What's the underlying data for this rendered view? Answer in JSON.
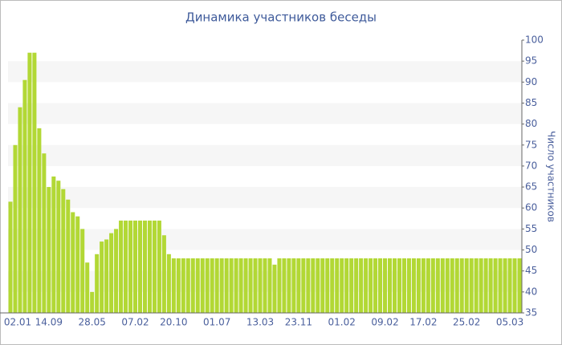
{
  "chart_data": {
    "type": "bar",
    "title": "Динамика участников беседы",
    "y_axis_label": "Число участников",
    "categories": [
      "02.01",
      null,
      null,
      null,
      null,
      null,
      null,
      null,
      "14.09",
      null,
      null,
      null,
      null,
      null,
      null,
      null,
      null,
      "28.05",
      null,
      null,
      null,
      null,
      null,
      null,
      null,
      null,
      "07.02",
      null,
      null,
      null,
      null,
      null,
      null,
      null,
      "20.10",
      null,
      null,
      null,
      null,
      null,
      null,
      null,
      null,
      "01.07",
      null,
      null,
      null,
      null,
      null,
      null,
      null,
      null,
      "13.03",
      null,
      null,
      null,
      null,
      null,
      null,
      null,
      "23.11",
      null,
      null,
      null,
      null,
      null,
      null,
      null,
      null,
      "01.02",
      null,
      null,
      null,
      null,
      null,
      null,
      null,
      null,
      "09.02",
      null,
      null,
      null,
      null,
      null,
      null,
      null,
      "17.02",
      null,
      null,
      null,
      null,
      null,
      null,
      null,
      null,
      "25.02",
      null,
      null,
      null,
      null,
      null,
      null,
      null,
      null,
      "05.03",
      null,
      null
    ],
    "values": [
      61.5,
      75,
      84,
      90.5,
      97,
      97,
      79,
      73,
      65,
      67.5,
      66.5,
      64.5,
      62,
      59,
      58,
      55,
      47,
      40,
      49,
      52,
      52.5,
      54,
      55,
      57,
      57,
      57,
      57,
      57,
      57,
      57,
      57,
      57,
      53.5,
      49,
      48,
      48,
      48,
      48,
      48,
      48,
      48,
      48,
      48,
      48,
      48,
      48,
      48,
      48,
      48,
      48,
      48,
      48,
      48,
      48,
      48,
      46.5,
      48,
      48,
      48,
      48,
      48,
      48,
      48,
      48,
      48,
      48,
      48,
      48,
      48,
      48,
      48,
      48,
      48,
      48,
      48,
      48,
      48,
      48,
      48,
      48,
      48,
      48,
      48,
      48,
      48,
      48,
      48,
      48,
      48,
      48,
      48,
      48,
      48,
      48,
      48,
      48,
      48,
      48,
      48,
      48,
      48,
      48,
      48,
      48,
      48,
      48,
      48
    ],
    "color": "#b2d835",
    "ylim": [
      35,
      100
    ],
    "yticks": [
      35,
      40,
      45,
      50,
      55,
      60,
      65,
      70,
      75,
      80,
      85,
      90,
      95,
      100
    ],
    "grid": "bands"
  }
}
